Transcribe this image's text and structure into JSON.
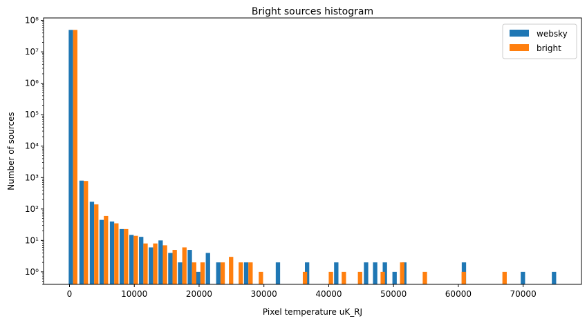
{
  "chart_data": {
    "type": "bar",
    "title": "Bright sources histogram",
    "xlabel": "Pixel temperature uK_RJ",
    "ylabel": "Number of sources",
    "xlim": [
      -4000,
      79000
    ],
    "ylim": [
      0.4,
      120000000
    ],
    "yscale": "log",
    "x_ticks": [
      0,
      10000,
      20000,
      30000,
      40000,
      50000,
      60000,
      70000
    ],
    "x_tick_labels": [
      "0",
      "10000",
      "20000",
      "30000",
      "40000",
      "50000",
      "60000",
      "70000"
    ],
    "y_ticks": [
      1,
      10,
      100,
      1000,
      10000,
      100000,
      1000000,
      10000000,
      100000000
    ],
    "y_tick_labels": [
      "10⁰",
      "10¹",
      "10²",
      "10³",
      "10⁴",
      "10⁵",
      "10⁶",
      "10⁷",
      "10⁸"
    ],
    "legend_position": "top-right",
    "grid": false,
    "series": [
      {
        "name": "websky",
        "color": "#1f77b4",
        "offset": -1,
        "points": [
          [
            550,
            50000000
          ],
          [
            2200,
            800
          ],
          [
            3800,
            170
          ],
          [
            5300,
            45
          ],
          [
            6900,
            40
          ],
          [
            8400,
            23
          ],
          [
            9900,
            15
          ],
          [
            11400,
            13
          ],
          [
            12900,
            6
          ],
          [
            14400,
            10
          ],
          [
            15900,
            4
          ],
          [
            17400,
            2
          ],
          [
            18900,
            5
          ],
          [
            20200,
            1
          ],
          [
            21700,
            4
          ],
          [
            23300,
            2
          ],
          [
            27600,
            2
          ],
          [
            32500,
            2
          ],
          [
            37000,
            2
          ],
          [
            41500,
            2
          ],
          [
            46100,
            2
          ],
          [
            47500,
            2
          ],
          [
            49000,
            2
          ],
          [
            50500,
            1
          ],
          [
            52000,
            2
          ],
          [
            61200,
            2
          ],
          [
            70300,
            1
          ],
          [
            75100,
            1
          ]
        ]
      },
      {
        "name": "bright",
        "color": "#ff7f0e",
        "offset": 1,
        "points": [
          [
            550,
            50000000
          ],
          [
            2200,
            780
          ],
          [
            3800,
            140
          ],
          [
            5300,
            60
          ],
          [
            6900,
            35
          ],
          [
            8400,
            23
          ],
          [
            9900,
            14
          ],
          [
            11400,
            8
          ],
          [
            12900,
            8
          ],
          [
            14400,
            7
          ],
          [
            15900,
            5
          ],
          [
            17400,
            6
          ],
          [
            18900,
            2
          ],
          [
            20200,
            2
          ],
          [
            23300,
            2
          ],
          [
            24600,
            3
          ],
          [
            26100,
            2
          ],
          [
            27600,
            2
          ],
          [
            29200,
            1
          ],
          [
            36000,
            1
          ],
          [
            40000,
            1
          ],
          [
            42000,
            1
          ],
          [
            44500,
            1
          ],
          [
            48000,
            1
          ],
          [
            51000,
            2
          ],
          [
            54500,
            1
          ],
          [
            60500,
            1
          ],
          [
            66800,
            1
          ]
        ]
      }
    ]
  }
}
